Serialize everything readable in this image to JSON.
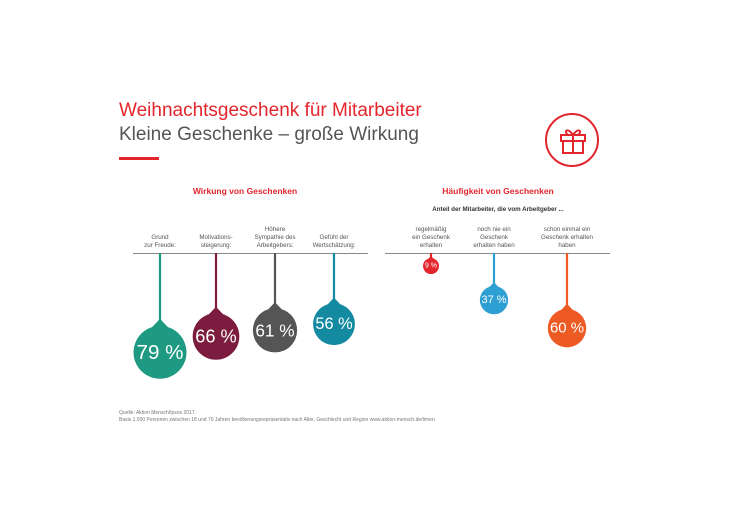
{
  "header": {
    "title": "Weihnachtsgeschenk für Mitarbeiter",
    "subtitle": "Kleine Geschenke – große Wirkung"
  },
  "icons": {
    "badge": "gift-icon"
  },
  "colors": {
    "accent": "#e3262d",
    "text": "#555555"
  },
  "chart_data": [
    {
      "type": "bar",
      "title": "Wirkung von Geschenken",
      "categories": [
        [
          "Grund",
          "zur Freude:"
        ],
        [
          "Motivations-",
          "steigerung:"
        ],
        [
          "Höhere",
          "Sympathie des",
          "Arbeitgebers:"
        ],
        [
          "Gefühl der",
          "Wertschätzung:"
        ]
      ],
      "values": [
        79,
        66,
        61,
        56
      ],
      "value_labels": [
        "79 %",
        "66 %",
        "61 %",
        "56 %"
      ],
      "colors": [
        "#1e9a83",
        "#7c1d3f",
        "#555555",
        "#138aa0"
      ]
    },
    {
      "type": "bar",
      "title": "Häufigkeit von Geschenken",
      "subtitle": "Anteil der Mitarbeiter, die vom Arbeitgeber ...",
      "categories": [
        [
          "regelmäßig",
          "ein Geschenk",
          "erhalten"
        ],
        [
          "noch nie ein",
          "Geschenk",
          "erhalten haben"
        ],
        [
          "schon einmal ein",
          "Geschenk erhalten",
          "haben"
        ]
      ],
      "values": [
        9,
        37,
        60
      ],
      "value_labels": [
        "9 %",
        "37 %",
        "60 %"
      ],
      "colors": [
        "#e3262d",
        "#2e9fd3",
        "#ee5a24"
      ]
    }
  ],
  "source": {
    "line1": "Quelle: Aktion Mensch/Ipsos 2017.",
    "line2": "Basis 1.000 Personen zwischen 18 und 70 Jahren bevölkerungsrepräsentativ nach Alter, Geschlecht und Region www.aktion-mensch.de/timen"
  }
}
